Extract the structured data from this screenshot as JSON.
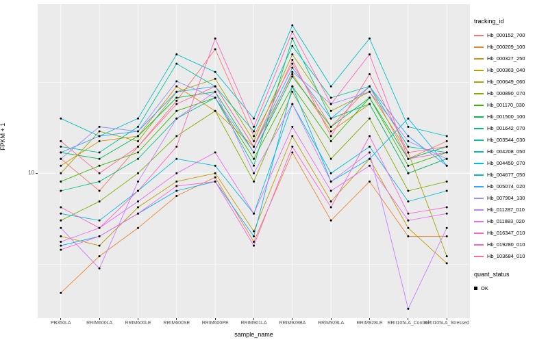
{
  "chart_data": {
    "type": "line",
    "title": "",
    "xlabel": "sample_name",
    "ylabel": "FPKM + 1",
    "y_scale": "log10",
    "ylim": [
      1.6,
      85
    ],
    "y_ticks": [
      {
        "value": 10,
        "label": "10"
      }
    ],
    "y_minor": [
      3.162,
      31.62
    ],
    "grid": true,
    "panel_bg": "#EBEBEB",
    "grid_color": "#FFFFFF",
    "point_color": "#000000",
    "legend_position": "right",
    "legend_title": "tracking_id",
    "x_categories": [
      "PB350LA",
      "RRIM600LA",
      "RRIM600LE",
      "RRIM600SE",
      "RRIM600PE",
      "RRIM901LA",
      "RRIM928BA",
      "RRIM928LA",
      "RRIM928LE",
      "RRII105LA_Control",
      "RRII105LA_Stressed"
    ],
    "series": [
      {
        "name": "Hb_000152_700",
        "color": "#F8766D",
        "values": [
          12,
          8,
          14,
          25,
          48,
          16,
          40,
          18,
          30,
          12,
          15
        ]
      },
      {
        "name": "Hb_000209_100",
        "color": "#EA8331",
        "values": [
          2.2,
          3.5,
          5,
          7.5,
          9.5,
          4.2,
          13,
          5.5,
          9,
          4.5,
          4.5
        ]
      },
      {
        "name": "Hb_000327_250",
        "color": "#D89000",
        "values": [
          11,
          15,
          16,
          30,
          22,
          14,
          35,
          17,
          24,
          10,
          12
        ]
      },
      {
        "name": "Hb_000363_040",
        "color": "#C09B00",
        "values": [
          4.5,
          4,
          6.5,
          9,
          10,
          4.8,
          16,
          7,
          12,
          5,
          3.2
        ]
      },
      {
        "name": "Hb_000649_060",
        "color": "#A3A500",
        "values": [
          10,
          17,
          15,
          28,
          33,
          15,
          45,
          22,
          28,
          13,
          3.5
        ]
      },
      {
        "name": "Hb_000890_070",
        "color": "#7CAE00",
        "values": [
          5.5,
          7,
          10,
          16,
          22,
          9,
          28,
          12,
          20,
          8,
          9
        ]
      },
      {
        "name": "Hb_001170_030",
        "color": "#39B600",
        "values": [
          9,
          11,
          13,
          22,
          26,
          12,
          30,
          15,
          26,
          11,
          13
        ]
      },
      {
        "name": "Hb_001500_100",
        "color": "#00BB4E",
        "values": [
          13,
          12,
          16,
          26,
          28,
          13,
          34,
          18,
          26,
          12,
          14
        ]
      },
      {
        "name": "Hb_001642_070",
        "color": "#00BF7D",
        "values": [
          8,
          9,
          12,
          20,
          26,
          11,
          55,
          20,
          24,
          10,
          12
        ]
      },
      {
        "name": "Hb_003544_030",
        "color": "#00C1A3",
        "values": [
          14,
          13,
          18,
          40,
          30,
          17,
          50,
          26,
          30,
          14,
          13
        ]
      },
      {
        "name": "Hb_004208_050",
        "color": "#00BFC4",
        "values": [
          20,
          16,
          20,
          45,
          36,
          20,
          65,
          30,
          55,
          18,
          16
        ]
      },
      {
        "name": "Hb_004450_070",
        "color": "#00BAE0",
        "values": [
          6,
          5.5,
          8,
          12,
          11,
          6,
          24,
          10,
          14,
          7,
          8
        ]
      },
      {
        "name": "Hb_004677_050",
        "color": "#00B0F6",
        "values": [
          4,
          4.5,
          6,
          8,
          9,
          4.5,
          30,
          9,
          12,
          20,
          11
        ]
      },
      {
        "name": "Hb_005074_020",
        "color": "#35A2FF",
        "values": [
          13,
          16,
          17,
          28,
          30,
          14,
          38,
          20,
          30,
          16,
          11
        ]
      },
      {
        "name": "Hb_007904_130",
        "color": "#9590FF",
        "values": [
          12,
          18,
          17,
          32,
          26,
          13,
          36,
          24,
          28,
          15,
          12
        ]
      },
      {
        "name": "Hb_011287_010",
        "color": "#C77CFF",
        "values": [
          5,
          3,
          9,
          20,
          28,
          10,
          24,
          9,
          13,
          1.8,
          5
        ]
      },
      {
        "name": "Hb_011883_020",
        "color": "#E76BF3",
        "values": [
          4.2,
          5,
          7,
          10,
          13,
          6,
          18,
          8,
          11,
          5.5,
          6
        ]
      },
      {
        "name": "Hb_016347_010",
        "color": "#FA62DB",
        "values": [
          3.8,
          4.5,
          6,
          8.5,
          9,
          4,
          14,
          6.5,
          16,
          6,
          6.5
        ]
      },
      {
        "name": "Hb_019280_010",
        "color": "#FF62BC",
        "values": [
          6.5,
          5,
          8,
          14,
          55,
          18,
          60,
          24,
          45,
          12,
          13
        ]
      },
      {
        "name": "Hb_103684_010",
        "color": "#FF6A98",
        "values": [
          15,
          10,
          14,
          24,
          30,
          14,
          42,
          16,
          35,
          13,
          14
        ]
      }
    ],
    "quant_legend": {
      "title": "quant_status",
      "items": [
        {
          "label": "OK"
        }
      ]
    }
  }
}
